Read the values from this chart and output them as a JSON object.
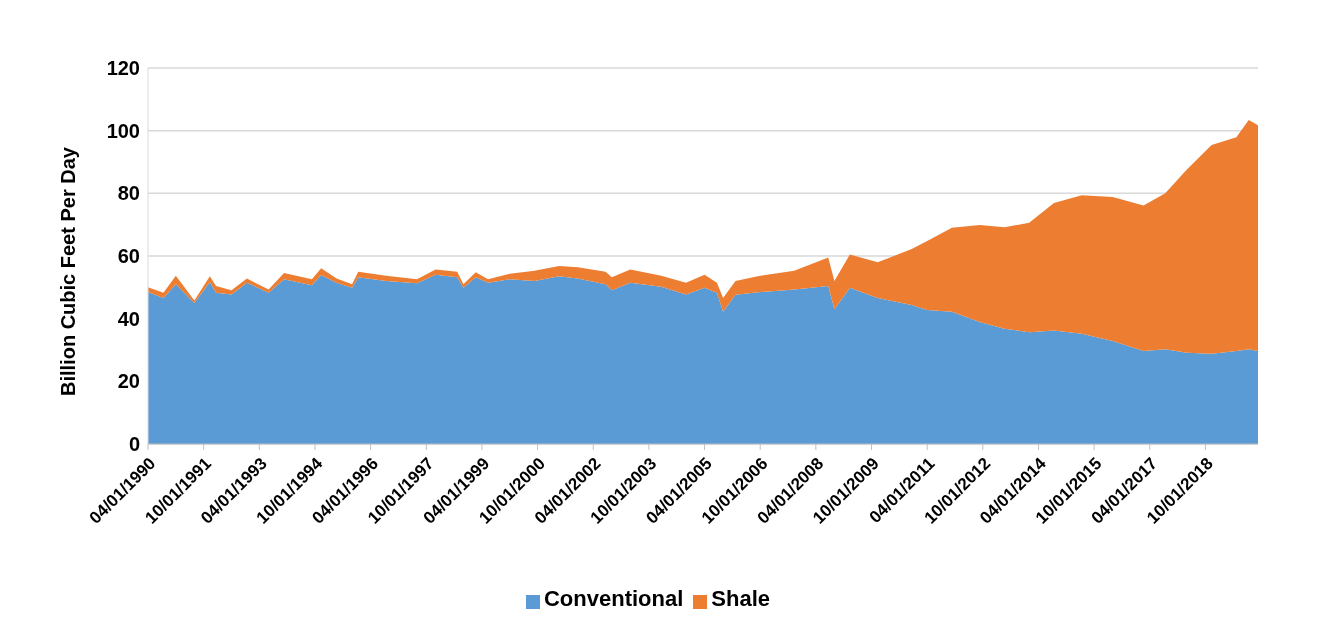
{
  "chart_data": {
    "type": "area",
    "stacked": true,
    "ylabel": "Billion Cubic Feet Per Day",
    "x": [
      "1990-04",
      "1990-09",
      "1991-01",
      "1991-07",
      "1991-12",
      "1992-02",
      "1992-07",
      "1992-12",
      "1993-07",
      "1993-12",
      "1994-09",
      "1994-12",
      "1995-05",
      "1995-10",
      "1995-12",
      "1996-09",
      "1997-07",
      "1998-01",
      "1998-08",
      "1998-10",
      "1999-02",
      "1999-06",
      "2000-01",
      "2000-09",
      "2001-05",
      "2001-11",
      "2002-08",
      "2002-10",
      "2003-04",
      "2004-02",
      "2004-10",
      "2005-04",
      "2005-08",
      "2005-10",
      "2006-02",
      "2006-10",
      "2007-09",
      "2008-08",
      "2008-10",
      "2009-03",
      "2009-12",
      "2010-11",
      "2011-04",
      "2011-12",
      "2012-09",
      "2013-05",
      "2014-01",
      "2014-09",
      "2015-06",
      "2016-04",
      "2017-02",
      "2017-09",
      "2018-04",
      "2018-12",
      "2019-08",
      "2019-12",
      "2020-03"
    ],
    "series": [
      {
        "name": "Conventional",
        "color": "#5b9bd5",
        "values": [
          48.5,
          46.6,
          51,
          45,
          51.7,
          48.3,
          47.7,
          51.5,
          48.3,
          52.6,
          50.7,
          53.9,
          51.5,
          49.9,
          53.2,
          52,
          51.3,
          54,
          53.2,
          49.9,
          53.2,
          51.5,
          52.6,
          52,
          53.5,
          52.8,
          51,
          49.1,
          51.5,
          50.2,
          47.7,
          49.9,
          48.3,
          42.2,
          47.6,
          48.5,
          49.3,
          50.4,
          43,
          49.9,
          46.6,
          44.4,
          42.8,
          42.2,
          38.9,
          36.8,
          35.7,
          36.2,
          35.2,
          32.9,
          29.7,
          30.2,
          29.1,
          28.8,
          29.7,
          30.2,
          29.7
        ]
      },
      {
        "name": "Shale",
        "color": "#ed7d31",
        "values": [
          1.5,
          1.7,
          2.7,
          0.8,
          1.8,
          2.1,
          1.4,
          1.3,
          1.0,
          2.0,
          1.9,
          2.2,
          1.3,
          1.1,
          1.8,
          1.7,
          1.3,
          1.7,
          1.8,
          1.1,
          1.6,
          1.1,
          1.7,
          3.3,
          3.3,
          3.6,
          4.0,
          4.1,
          4.2,
          3.5,
          3.8,
          4.1,
          3.2,
          4.4,
          4.4,
          5.2,
          6.0,
          9.1,
          9.0,
          10.6,
          11.4,
          17.8,
          22.0,
          26.8,
          31.0,
          32.4,
          34.9,
          40.7,
          44.2,
          45.9,
          46.4,
          49.8,
          58.5,
          66.6,
          68.2,
          73.2,
          72.0
        ]
      }
    ],
    "xlim": [
      "1990-04",
      "2020-03"
    ],
    "xticks": [
      {
        "value": "1990-04",
        "label": "04/01/1990"
      },
      {
        "value": "1991-10",
        "label": "10/01/1991"
      },
      {
        "value": "1993-04",
        "label": "04/01/1993"
      },
      {
        "value": "1994-10",
        "label": "10/01/1994"
      },
      {
        "value": "1996-04",
        "label": "04/01/1996"
      },
      {
        "value": "1997-10",
        "label": "10/01/1997"
      },
      {
        "value": "1999-04",
        "label": "04/01/1999"
      },
      {
        "value": "2000-10",
        "label": "10/01/2000"
      },
      {
        "value": "2002-04",
        "label": "04/01/2002"
      },
      {
        "value": "2003-10",
        "label": "10/01/2003"
      },
      {
        "value": "2005-04",
        "label": "04/01/2005"
      },
      {
        "value": "2006-10",
        "label": "10/01/2006"
      },
      {
        "value": "2008-04",
        "label": "04/01/2008"
      },
      {
        "value": "2009-10",
        "label": "10/01/2009"
      },
      {
        "value": "2011-04",
        "label": "04/01/2011"
      },
      {
        "value": "2012-10",
        "label": "10/01/2012"
      },
      {
        "value": "2014-04",
        "label": "04/01/2014"
      },
      {
        "value": "2015-10",
        "label": "10/01/2015"
      },
      {
        "value": "2017-04",
        "label": "04/01/2017"
      },
      {
        "value": "2018-10",
        "label": "10/01/2018"
      }
    ],
    "ylim": [
      0,
      120
    ],
    "yticks": [
      0,
      20,
      40,
      60,
      80,
      100,
      120
    ],
    "grid": "y",
    "legend": "bottom"
  }
}
